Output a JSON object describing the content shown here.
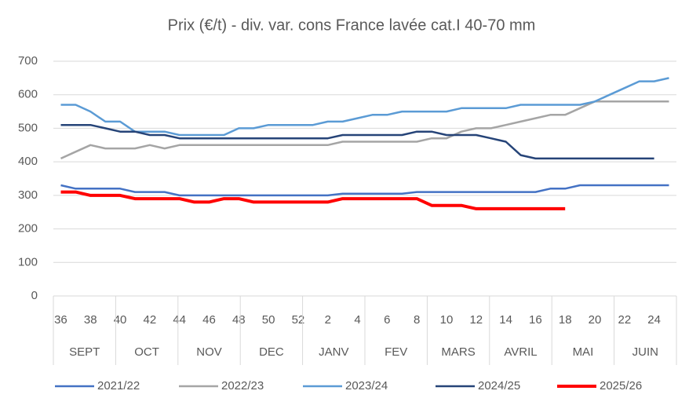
{
  "chart_data": {
    "type": "line",
    "title": "Prix (€/t) - div. var. cons France lavée cat.I 40-70 mm",
    "categories": [
      "36",
      null,
      "38",
      null,
      "40",
      null,
      "42",
      null,
      "44",
      null,
      "46",
      null,
      "48",
      null,
      "50",
      null,
      "52",
      null,
      "2",
      null,
      "4",
      null,
      "6",
      null,
      "8",
      null,
      "10",
      null,
      "12",
      null,
      "14",
      null,
      "16",
      null,
      "18",
      null,
      "20",
      null,
      "22",
      null,
      "24",
      null
    ],
    "months": [
      "SEPT",
      "OCT",
      "NOV",
      "DEC",
      "JANV",
      "FEV",
      "MARS",
      "AVRIL",
      "MAI",
      "JUIN"
    ],
    "ylim": [
      0,
      700
    ],
    "yticks": [
      0,
      100,
      200,
      300,
      400,
      500,
      600,
      700
    ],
    "grid": true,
    "legend": "bottom",
    "series": [
      {
        "name": "2021/22",
        "color": "#4472c4",
        "values": [
          330,
          320,
          320,
          320,
          320,
          310,
          310,
          310,
          300,
          300,
          300,
          300,
          300,
          300,
          300,
          300,
          300,
          300,
          300,
          305,
          305,
          305,
          305,
          305,
          310,
          310,
          310,
          310,
          310,
          310,
          310,
          310,
          310,
          320,
          320,
          330,
          330,
          330,
          330,
          330,
          330,
          330
        ]
      },
      {
        "name": "2022/23",
        "color": "#a5a5a5",
        "values": [
          410,
          430,
          450,
          440,
          440,
          440,
          450,
          440,
          450,
          450,
          450,
          450,
          450,
          450,
          450,
          450,
          450,
          450,
          450,
          460,
          460,
          460,
          460,
          460,
          460,
          470,
          470,
          490,
          500,
          500,
          510,
          520,
          530,
          540,
          540,
          560,
          580,
          580,
          580,
          580,
          580,
          580
        ]
      },
      {
        "name": "2023/24",
        "color": "#5b9bd5",
        "values": [
          570,
          570,
          550,
          520,
          520,
          490,
          490,
          490,
          480,
          480,
          480,
          480,
          500,
          500,
          510,
          510,
          510,
          510,
          520,
          520,
          530,
          540,
          540,
          550,
          550,
          550,
          550,
          560,
          560,
          560,
          560,
          570,
          570,
          570,
          570,
          570,
          580,
          600,
          620,
          640,
          640,
          650
        ]
      },
      {
        "name": "2024/25",
        "color": "#264478",
        "values": [
          510,
          510,
          510,
          500,
          490,
          490,
          480,
          480,
          470,
          470,
          470,
          470,
          470,
          470,
          470,
          470,
          470,
          470,
          470,
          480,
          480,
          480,
          480,
          480,
          490,
          490,
          480,
          480,
          480,
          470,
          460,
          420,
          410,
          410,
          410,
          410,
          410,
          410,
          410,
          410,
          410,
          null
        ]
      },
      {
        "name": "2025/26",
        "color": "#ff0000",
        "values": [
          310,
          310,
          300,
          300,
          300,
          290,
          290,
          290,
          290,
          280,
          280,
          290,
          290,
          280,
          280,
          280,
          280,
          280,
          280,
          290,
          290,
          290,
          290,
          290,
          290,
          270,
          270,
          270,
          260,
          260,
          260,
          260,
          260,
          260,
          260,
          null,
          null,
          null,
          null,
          null,
          null,
          null
        ]
      }
    ]
  }
}
